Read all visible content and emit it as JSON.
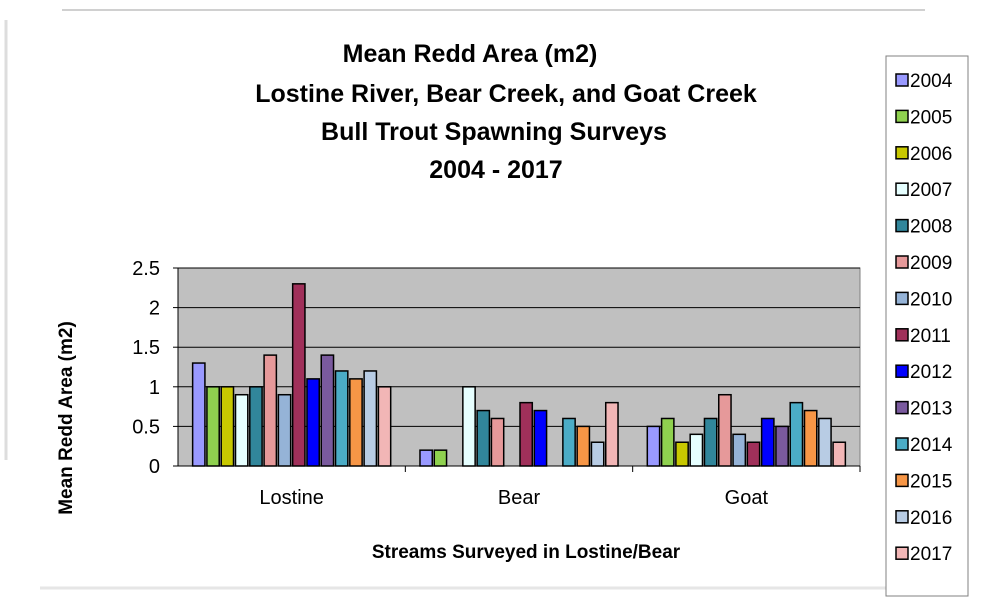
{
  "chart_data": {
    "type": "bar",
    "title_lines": [
      "Mean Redd Area (m2)",
      "Lostine River, Bear Creek, and Goat Creek",
      "Bull Trout Spawning Surveys",
      "2004 - 2017"
    ],
    "xlabel": "Streams Surveyed in Lostine/Bear",
    "ylabel": "Mean Redd Area (m2)",
    "ylim": [
      0,
      2.5
    ],
    "y_ticks": [
      "0",
      "0.5",
      "1",
      "1.5",
      "2",
      "2.5"
    ],
    "grid": true,
    "legend_position": "right",
    "categories": [
      "Lostine",
      "Bear",
      "Goat"
    ],
    "series": [
      {
        "name": "2004",
        "color": "#9999ff",
        "values": [
          1.3,
          0.2,
          0.5
        ]
      },
      {
        "name": "2005",
        "color": "#8fd14f",
        "values": [
          1.0,
          0.2,
          0.6
        ]
      },
      {
        "name": "2006",
        "color": "#c8c800",
        "values": [
          1.0,
          0.0,
          0.3
        ]
      },
      {
        "name": "2007",
        "color": "#e6ffff",
        "values": [
          0.9,
          1.0,
          0.4
        ]
      },
      {
        "name": "2008",
        "color": "#31869b",
        "values": [
          1.0,
          0.7,
          0.6
        ]
      },
      {
        "name": "2009",
        "color": "#e6999a",
        "values": [
          1.4,
          0.6,
          0.9
        ]
      },
      {
        "name": "2010",
        "color": "#95b3d7",
        "values": [
          0.9,
          0.0,
          0.4
        ]
      },
      {
        "name": "2011",
        "color": "#a0305a",
        "values": [
          2.3,
          0.8,
          0.3
        ]
      },
      {
        "name": "2012",
        "color": "#0000ff",
        "values": [
          1.1,
          0.7,
          0.6
        ]
      },
      {
        "name": "2013",
        "color": "#7a5a9e",
        "values": [
          1.4,
          0.0,
          0.5
        ]
      },
      {
        "name": "2014",
        "color": "#4bacc6",
        "values": [
          1.2,
          0.6,
          0.8
        ]
      },
      {
        "name": "2015",
        "color": "#f79646",
        "values": [
          1.1,
          0.5,
          0.7
        ]
      },
      {
        "name": "2016",
        "color": "#b8cce4",
        "values": [
          1.2,
          0.3,
          0.6
        ]
      },
      {
        "name": "2017",
        "color": "#f2b6b6",
        "values": [
          1.0,
          0.8,
          0.3
        ]
      }
    ]
  }
}
